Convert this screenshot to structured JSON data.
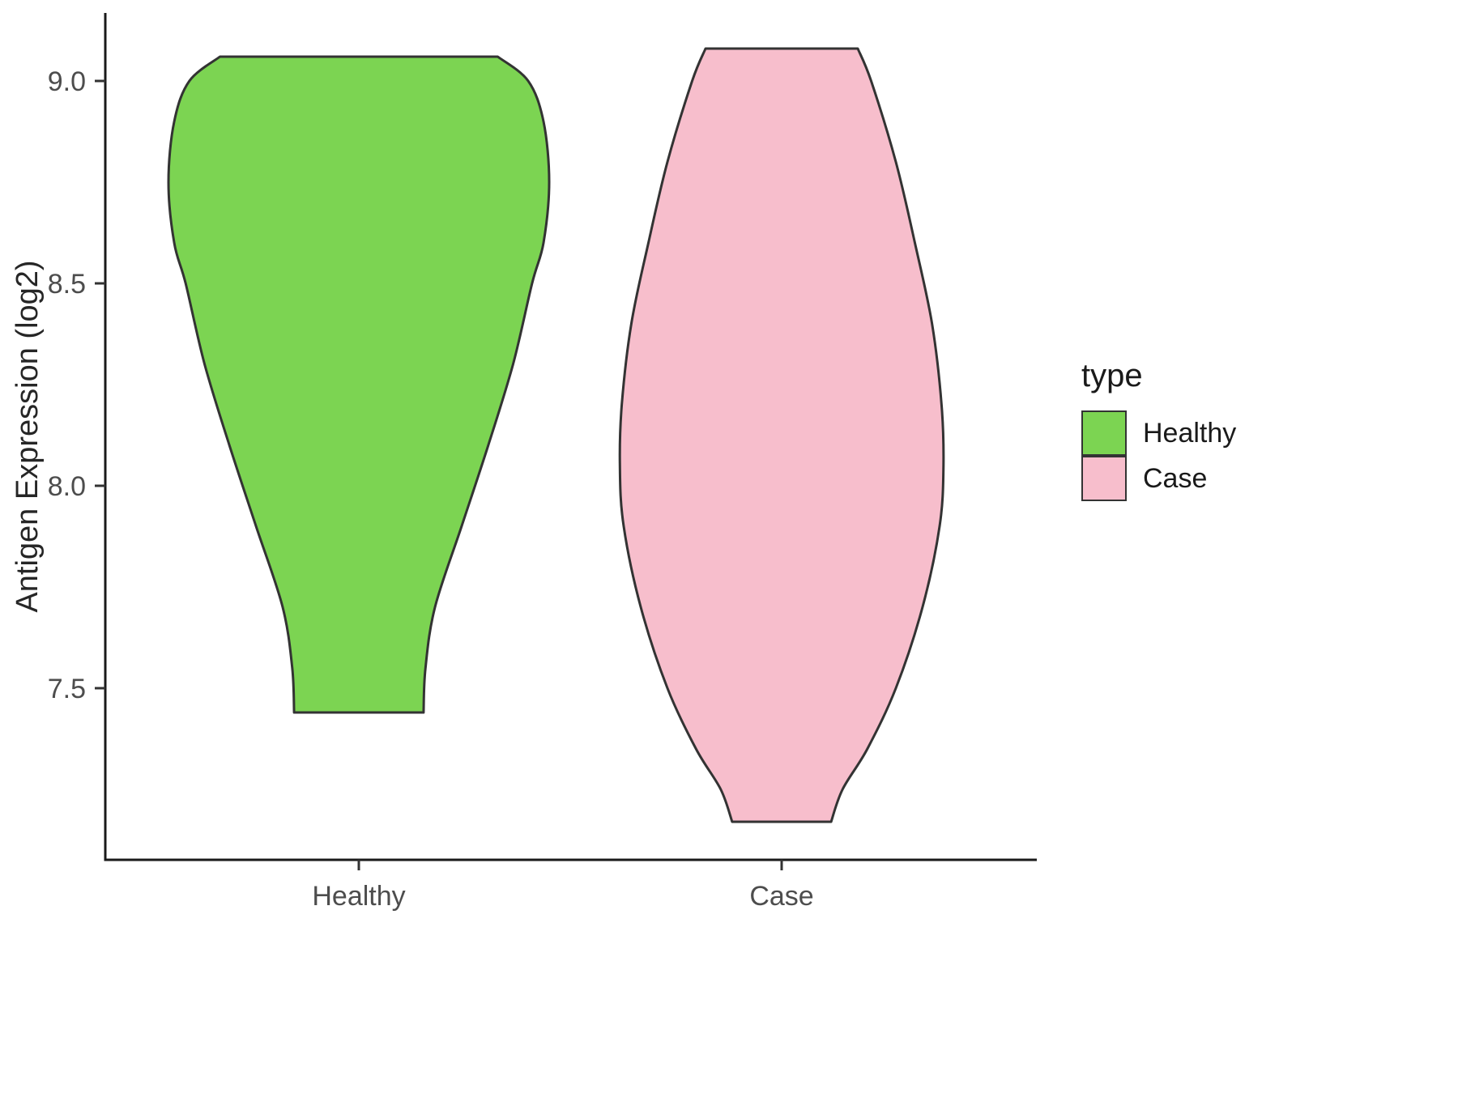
{
  "chart_data": {
    "type": "violin",
    "title": "",
    "xlabel": "",
    "ylabel": "Antigen Expression (log2)",
    "categories": [
      "Healthy",
      "Case"
    ],
    "y_ticks": [
      "7.5",
      "8.0",
      "8.5",
      "9.0"
    ],
    "ylim": [
      7.08,
      9.17
    ],
    "grid": false,
    "legend": {
      "title": "type",
      "position": "right",
      "entries": [
        {
          "label": "Healthy",
          "color": "#7CD452"
        },
        {
          "label": "Case",
          "color": "#F7BECC"
        }
      ]
    },
    "series": [
      {
        "name": "Healthy",
        "color": "#7CD452",
        "outline": "#333333",
        "y_min": 7.44,
        "y_max": 9.06,
        "profile": [
          [
            9.06,
            0.73
          ],
          [
            9.0,
            0.89
          ],
          [
            8.9,
            0.97
          ],
          [
            8.75,
            1.0
          ],
          [
            8.6,
            0.97
          ],
          [
            8.5,
            0.91
          ],
          [
            8.3,
            0.81
          ],
          [
            8.1,
            0.68
          ],
          [
            7.9,
            0.54
          ],
          [
            7.7,
            0.4
          ],
          [
            7.55,
            0.35
          ],
          [
            7.44,
            0.34
          ]
        ]
      },
      {
        "name": "Case",
        "color": "#F7BECC",
        "outline": "#333333",
        "y_min": 7.17,
        "y_max": 9.08,
        "profile": [
          [
            9.08,
            0.4
          ],
          [
            9.0,
            0.47
          ],
          [
            8.8,
            0.6
          ],
          [
            8.6,
            0.7
          ],
          [
            8.4,
            0.79
          ],
          [
            8.2,
            0.84
          ],
          [
            8.05,
            0.85
          ],
          [
            7.9,
            0.83
          ],
          [
            7.7,
            0.74
          ],
          [
            7.5,
            0.6
          ],
          [
            7.35,
            0.45
          ],
          [
            7.25,
            0.32
          ],
          [
            7.17,
            0.26
          ]
        ]
      }
    ]
  }
}
